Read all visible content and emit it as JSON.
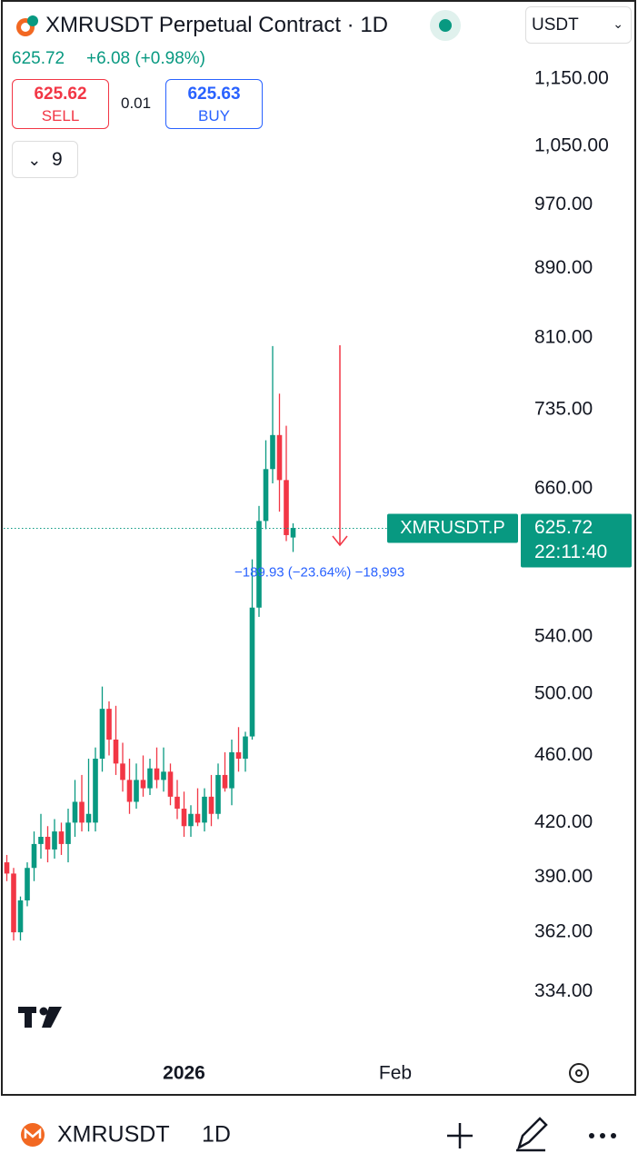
{
  "header": {
    "title": "XMRUSDT Perpetual Contract · 1D",
    "last": "625.72",
    "change": "+6.08 (+0.98%)",
    "sell_price": "625.62",
    "sell_label": "SELL",
    "spread": "0.01",
    "buy_price": "625.63",
    "buy_label": "BUY",
    "indicator_count": "9",
    "currency": "USDT"
  },
  "chart_data": {
    "type": "candlestick",
    "x": [
      0,
      1,
      2,
      3,
      4,
      5,
      6,
      7,
      8,
      9,
      10,
      11,
      12,
      13,
      14,
      15,
      16,
      17,
      18,
      19,
      20,
      21,
      22,
      23,
      24,
      25,
      26,
      27,
      28,
      29,
      30,
      31,
      32,
      33,
      34,
      35,
      36,
      37,
      38,
      39,
      40,
      41,
      42
    ],
    "open": [
      398,
      392,
      362,
      378,
      395,
      408,
      412,
      405,
      415,
      408,
      420,
      432,
      420,
      420,
      458,
      490,
      470,
      455,
      445,
      432,
      445,
      440,
      452,
      445,
      450,
      435,
      428,
      418,
      425,
      420,
      435,
      425,
      448,
      440,
      462,
      458,
      472,
      562,
      632,
      678,
      710,
      668,
      618
    ],
    "high": [
      402,
      395,
      380,
      398,
      415,
      425,
      418,
      422,
      420,
      428,
      445,
      448,
      458,
      465,
      505,
      495,
      492,
      468,
      458,
      455,
      460,
      458,
      465,
      465,
      455,
      445,
      438,
      430,
      440,
      440,
      448,
      455,
      462,
      470,
      478,
      475,
      600,
      645,
      705,
      801,
      751,
      719,
      630
    ],
    "low": [
      388,
      358,
      358,
      375,
      388,
      400,
      398,
      400,
      402,
      398,
      412,
      415,
      415,
      415,
      450,
      460,
      448,
      438,
      425,
      428,
      435,
      436,
      440,
      438,
      430,
      422,
      412,
      412,
      418,
      415,
      418,
      422,
      438,
      430,
      450,
      450,
      470,
      555,
      625,
      665,
      640,
      615,
      606
    ],
    "close": [
      392,
      362,
      378,
      395,
      408,
      412,
      405,
      415,
      408,
      420,
      432,
      420,
      425,
      458,
      490,
      470,
      455,
      445,
      432,
      445,
      440,
      452,
      445,
      450,
      435,
      428,
      418,
      425,
      420,
      435,
      425,
      448,
      440,
      462,
      458,
      472,
      562,
      632,
      678,
      710,
      668,
      620,
      626
    ],
    "up_color": "#089981",
    "down_color": "#f23645",
    "log_scale": true,
    "grid": false,
    "ylim": [
      307,
      1280
    ],
    "yticks": [
      {
        "value": 1150,
        "label": "1,150.00"
      },
      {
        "value": 1050,
        "label": "1,050.00"
      },
      {
        "value": 970,
        "label": "970.00"
      },
      {
        "value": 890,
        "label": "890.00"
      },
      {
        "value": 810,
        "label": "810.00"
      },
      {
        "value": 735,
        "label": "735.00"
      },
      {
        "value": 660,
        "label": "660.00"
      },
      {
        "value": 540,
        "label": "540.00"
      },
      {
        "value": 500,
        "label": "500.00"
      },
      {
        "value": 460,
        "label": "460.00"
      },
      {
        "value": 420,
        "label": "420.00"
      },
      {
        "value": 390,
        "label": "390.00"
      },
      {
        "value": 362,
        "label": "362.00"
      },
      {
        "value": 334,
        "label": "334.00"
      }
    ],
    "xlim": [
      -1,
      75
    ],
    "xticks": [
      {
        "value": 26,
        "label": "2026"
      },
      {
        "value": 57,
        "label": "Feb"
      }
    ],
    "last_price": 625.72,
    "last_price_name": "XMRUSDT.P",
    "countdown": "22:11:40",
    "annotation": "−189.93 (−23.64%) −18,993"
  },
  "footer": {
    "symbol": "XMRUSDT",
    "interval": "1D"
  }
}
